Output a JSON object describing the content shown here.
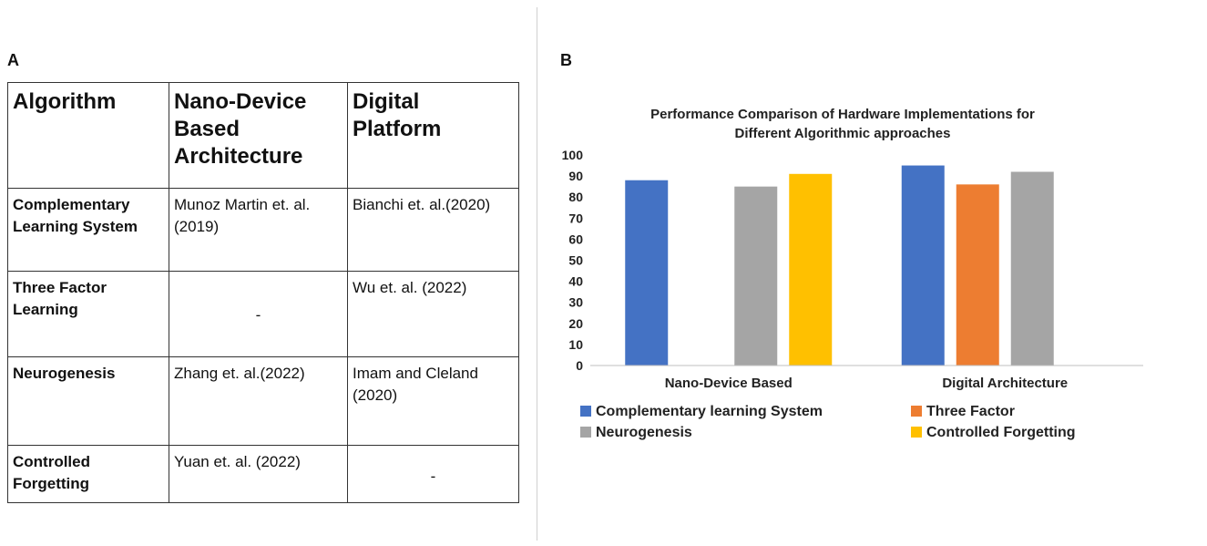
{
  "panel_a": {
    "letter": "A",
    "headers": [
      "Algorithm",
      "Nano-Device Based Architecture",
      "Digital Platform"
    ],
    "rows": [
      {
        "algorithm": "Complementary Learning System",
        "nano": "Munoz Martin et. al.(2019)",
        "digital": "Bianchi et. al.(2020)"
      },
      {
        "algorithm": "Three Factor Learning",
        "nano": "-",
        "digital": "Wu et. al. (2022)"
      },
      {
        "algorithm": "Neurogenesis",
        "nano": "Zhang et. al.(2022)",
        "digital": "Imam and Cleland (2020)"
      },
      {
        "algorithm": "Controlled Forgetting",
        "nano": "Yuan et. al. (2022)",
        "digital": "-"
      }
    ]
  },
  "panel_b": {
    "letter": "B"
  },
  "chart_data": {
    "type": "bar",
    "title": "Performance Comparison of Hardware Implementations for Different Algorithmic approaches",
    "title_lines": [
      "Performance Comparison of Hardware Implementations for",
      "Different Algorithmic approaches"
    ],
    "categories": [
      "Nano-Device Based",
      "Digital Architecture"
    ],
    "series": [
      {
        "name": "Complementary learning System",
        "color": "#4472c4",
        "values": [
          88,
          95
        ]
      },
      {
        "name": "Three Factor",
        "color": "#ed7d31",
        "values": [
          null,
          86
        ]
      },
      {
        "name": "Neurogenesis",
        "color": "#a5a5a5",
        "values": [
          85,
          92
        ]
      },
      {
        "name": "Controlled Forgetting",
        "color": "#ffc000",
        "values": [
          91,
          null
        ]
      }
    ],
    "ylim": [
      0,
      100
    ],
    "yticks": [
      0,
      10,
      20,
      30,
      40,
      50,
      60,
      70,
      80,
      90,
      100
    ],
    "grid": false,
    "legend": "bottom",
    "xlabel": "",
    "ylabel": ""
  }
}
